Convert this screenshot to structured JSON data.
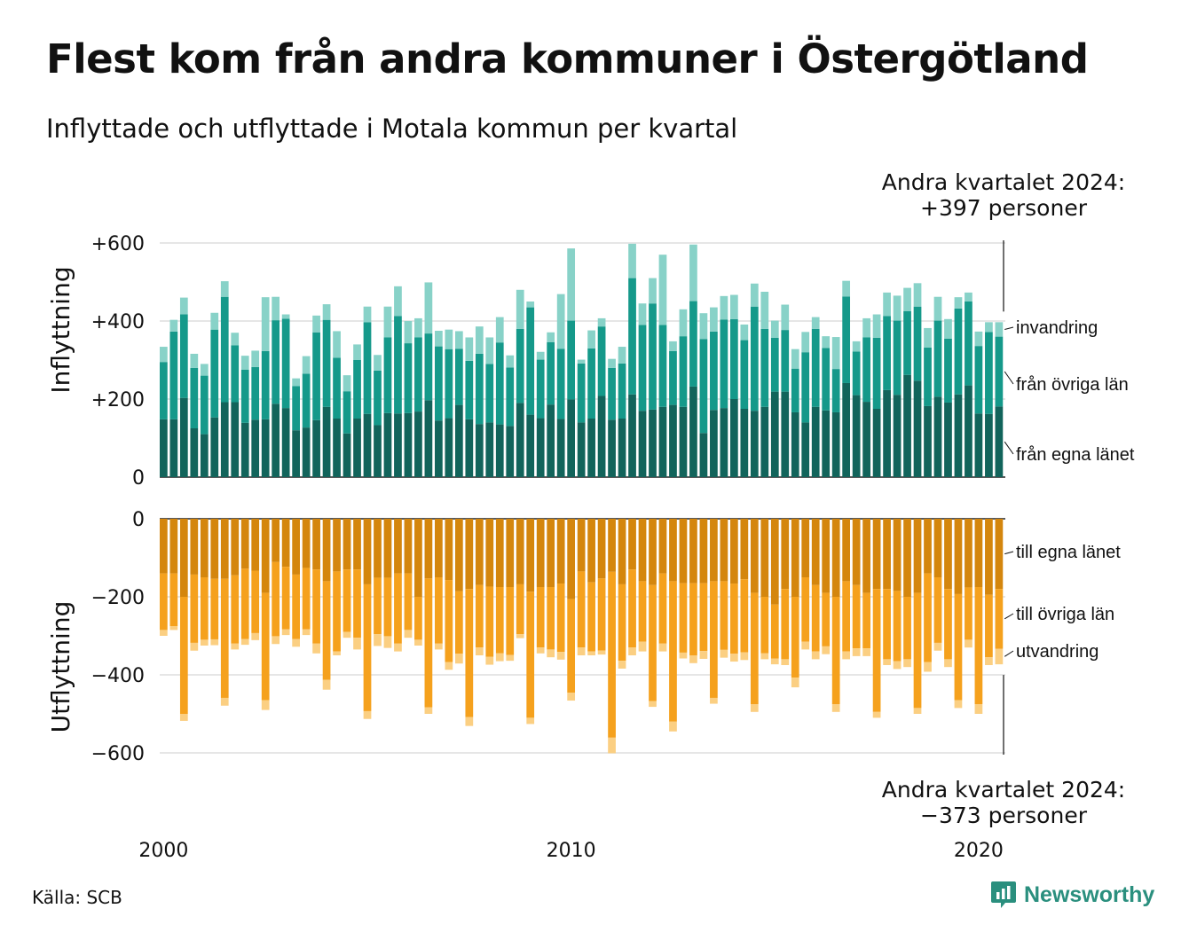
{
  "header": {
    "title": "Flest kom från andra kommuner i Östergötland",
    "subtitle": "Inflyttade och utflyttade i Motala kommun per kvartal"
  },
  "footer": {
    "source": "Källa: SCB",
    "brand": "Newsworthy"
  },
  "colors": {
    "in_egna": "#12645b",
    "in_ovriga": "#15998a",
    "in_invandring": "#88d2c8",
    "out_egna": "#d4860d",
    "out_ovriga": "#f5a11d",
    "out_utvandring": "#fbcf82",
    "grid": "#dddddd"
  },
  "chart_data": [
    {
      "type": "bar",
      "stacked": true,
      "panel": "inflyttning",
      "ylabel": "Inflyttning",
      "ylim": [
        0,
        600
      ],
      "yticks": [
        "0",
        "+200",
        "+400",
        "+600"
      ],
      "xtick_labels": [
        "2000",
        "2010",
        "2020"
      ],
      "x_start": "2000 Q1",
      "x_end": "2024 Q2",
      "callout": "Andra kvartalet 2024:\n+397 personer",
      "series": [
        {
          "name": "från egna länet",
          "values": [
            148,
            148,
            203,
            125,
            110,
            153,
            192,
            192,
            139,
            147,
            148,
            188,
            177,
            120,
            127,
            146,
            180,
            150,
            112,
            150,
            162,
            133,
            164,
            163,
            164,
            168,
            197,
            145,
            151,
            185,
            148,
            136,
            140,
            135,
            131,
            190,
            160,
            151,
            186,
            149,
            199,
            140,
            150,
            208,
            147,
            150,
            212,
            170,
            173,
            180,
            185,
            180,
            232,
            113,
            172,
            177,
            200,
            175,
            170,
            180,
            219,
            219,
            166,
            140,
            180,
            171,
            166,
            241,
            210,
            193,
            175,
            223,
            211,
            262,
            247,
            182,
            206,
            191,
            212,
            235,
            163,
            162,
            181
          ]
        },
        {
          "name": "från övriga län",
          "values": [
            147,
            225,
            214,
            155,
            150,
            225,
            270,
            146,
            136,
            135,
            175,
            214,
            229,
            113,
            138,
            225,
            223,
            156,
            108,
            150,
            235,
            140,
            194,
            250,
            179,
            190,
            171,
            190,
            177,
            144,
            150,
            180,
            150,
            210,
            150,
            190,
            275,
            150,
            160,
            180,
            202,
            151,
            180,
            178,
            133,
            141,
            298,
            220,
            272,
            210,
            138,
            181,
            219,
            241,
            201,
            227,
            205,
            176,
            267,
            200,
            138,
            158,
            112,
            180,
            200,
            160,
            111,
            222,
            112,
            165,
            182,
            190,
            190,
            163,
            190,
            150,
            195,
            164,
            220,
            215,
            173,
            210,
            179
          ]
        },
        {
          "name": "invandring",
          "values": [
            39,
            30,
            43,
            36,
            30,
            43,
            40,
            32,
            36,
            42,
            138,
            60,
            11,
            20,
            45,
            43,
            40,
            68,
            41,
            40,
            40,
            40,
            79,
            76,
            57,
            49,
            131,
            40,
            50,
            45,
            60,
            70,
            68,
            65,
            31,
            100,
            15,
            20,
            25,
            140,
            185,
            10,
            46,
            21,
            23,
            43,
            88,
            55,
            65,
            180,
            25,
            69,
            145,
            66,
            62,
            60,
            62,
            40,
            59,
            95,
            44,
            65,
            50,
            52,
            30,
            30,
            82,
            40,
            26,
            49,
            60,
            60,
            64,
            60,
            60,
            50,
            61,
            50,
            29,
            23,
            37,
            25,
            37
          ]
        }
      ]
    },
    {
      "type": "bar",
      "stacked": true,
      "panel": "utflyttning",
      "ylabel": "Utflyttning",
      "ylim": [
        -600,
        0
      ],
      "yticks": [
        "0",
        "−200",
        "−400",
        "−600"
      ],
      "xtick_labels": [
        "2000",
        "2010",
        "2020"
      ],
      "x_start": "2000 Q1",
      "x_end": "2024 Q2",
      "callout": "Andra kvartalet 2024:\n−373 personer",
      "series": [
        {
          "name": "till egna länet",
          "values": [
            -140,
            -140,
            -200,
            -143,
            -150,
            -154,
            -154,
            -145,
            -128,
            -133,
            -190,
            -111,
            -123,
            -143,
            -126,
            -130,
            -160,
            -135,
            -130,
            -130,
            -168,
            -151,
            -151,
            -140,
            -140,
            -200,
            -153,
            -150,
            -157,
            -186,
            -180,
            -170,
            -174,
            -175,
            -175,
            -168,
            -187,
            -175,
            -175,
            -166,
            -206,
            -135,
            -163,
            -153,
            -136,
            -168,
            -130,
            -160,
            -170,
            -140,
            -160,
            -165,
            -165,
            -165,
            -160,
            -160,
            -166,
            -155,
            -190,
            -200,
            -220,
            -180,
            -200,
            -150,
            -170,
            -190,
            -200,
            -160,
            -170,
            -190,
            -180,
            -180,
            -185,
            -200,
            -190,
            -140,
            -150,
            -180,
            -193,
            -176,
            -175,
            -195,
            -180
          ]
        },
        {
          "name": "till övriga län",
          "values": [
            -145,
            -135,
            -300,
            -175,
            -160,
            -155,
            -305,
            -175,
            -180,
            -160,
            -275,
            -190,
            -160,
            -165,
            -157,
            -190,
            -253,
            -205,
            -160,
            -175,
            -325,
            -145,
            -150,
            -180,
            -145,
            -110,
            -330,
            -170,
            -210,
            -160,
            -328,
            -160,
            -180,
            -170,
            -174,
            -128,
            -323,
            -155,
            -160,
            -175,
            -240,
            -195,
            -177,
            -185,
            -425,
            -196,
            -200,
            -155,
            -297,
            -180,
            -360,
            -178,
            -185,
            -174,
            -299,
            -176,
            -180,
            -187,
            -285,
            -145,
            -138,
            -180,
            -207,
            -165,
            -170,
            -137,
            -275,
            -180,
            -162,
            -142,
            -315,
            -180,
            -180,
            -160,
            -295,
            -227,
            -168,
            -180,
            -272,
            -134,
            -300,
            -160,
            -153
          ]
        },
        {
          "name": "utvandring",
          "values": [
            -15,
            -10,
            -18,
            -20,
            -15,
            -15,
            -20,
            -15,
            -15,
            -18,
            -25,
            -20,
            -15,
            -20,
            -15,
            -25,
            -25,
            -10,
            -15,
            -30,
            -20,
            -30,
            -30,
            -20,
            -20,
            -15,
            -17,
            -15,
            -20,
            -25,
            -23,
            -20,
            -20,
            -20,
            -15,
            -10,
            -16,
            -15,
            -20,
            -20,
            -20,
            -20,
            -10,
            -10,
            -40,
            -20,
            -20,
            -25,
            -15,
            -20,
            -25,
            -15,
            -20,
            -20,
            -15,
            -20,
            -20,
            -20,
            -20,
            -15,
            -15,
            -15,
            -25,
            -20,
            -20,
            -20,
            -20,
            -20,
            -20,
            -20,
            -15,
            -15,
            -20,
            -20,
            -15,
            -25,
            -20,
            -20,
            -20,
            -20,
            -25,
            -20,
            -40
          ]
        }
      ]
    }
  ]
}
